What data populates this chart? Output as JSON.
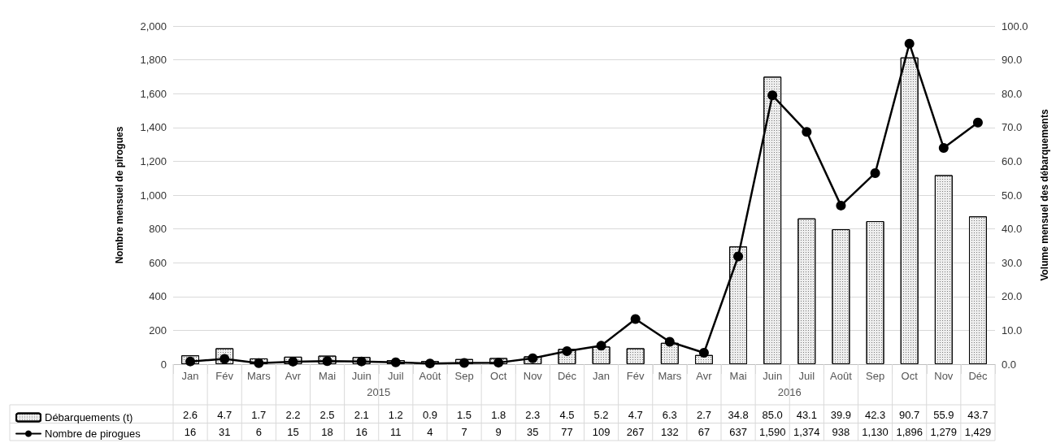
{
  "chart_data": {
    "type": "bar",
    "ylabel": "Nombre mensuel de pirogues",
    "y2label": "Volume mensuel des débarquements",
    "categories": [
      "Jan",
      "Fév",
      "Mars",
      "Avr",
      "Mai",
      "Juin",
      "Juil",
      "Août",
      "Sep",
      "Oct",
      "Nov",
      "Déc",
      "Jan",
      "Fév",
      "Mars",
      "Avr",
      "Mai",
      "Juin",
      "Juil",
      "Août",
      "Sep",
      "Oct",
      "Nov",
      "Déc"
    ],
    "annotations": [
      "2015",
      "2016"
    ],
    "series": [
      {
        "name": "Débarquements (t)",
        "axis": "y2",
        "color": "#eeeeee",
        "values": [
          2.6,
          4.7,
          1.7,
          2.2,
          2.5,
          2.1,
          1.2,
          0.9,
          1.5,
          1.8,
          2.3,
          4.5,
          5.2,
          4.7,
          6.3,
          2.7,
          34.8,
          85.0,
          43.1,
          39.9,
          42.3,
          90.7,
          55.9,
          43.7
        ],
        "value_labels": [
          "2.6",
          "4.7",
          "1.7",
          "2.2",
          "2.5",
          "2.1",
          "1.2",
          "0.9",
          "1.5",
          "1.8",
          "2.3",
          "4.5",
          "5.2",
          "4.7",
          "6.3",
          "2.7",
          "34.8",
          "85.0",
          "43.1",
          "39.9",
          "42.3",
          "90.7",
          "55.9",
          "43.7"
        ]
      },
      {
        "name": "Nombre de pirogues",
        "type": "line",
        "axis": "y",
        "color": "#000000",
        "marker": "circle",
        "line_style": "solid",
        "values": [
          16,
          31,
          6,
          15,
          18,
          16,
          11,
          4,
          7,
          9,
          35,
          77,
          109,
          267,
          132,
          67,
          637,
          1590,
          1374,
          938,
          1130,
          1896,
          1279,
          1429
        ],
        "value_labels": [
          "16",
          "31",
          "6",
          "15",
          "18",
          "16",
          "11",
          "4",
          "7",
          "9",
          "35",
          "77",
          "109",
          "267",
          "132",
          "67",
          "637",
          "1,590",
          "1,374",
          "938",
          "1,130",
          "1,896",
          "1,279",
          "1,429"
        ]
      }
    ],
    "ylim": [
      0,
      2000
    ],
    "yticks": [
      0,
      200,
      400,
      600,
      800,
      {
        "value": 1000,
        "label": "1,000"
      },
      {
        "value": 1200,
        "label": "1,200"
      },
      {
        "value": 1400,
        "label": "1,400"
      },
      {
        "value": 1600,
        "label": "1,600"
      },
      {
        "value": 1800,
        "label": "1,800"
      },
      {
        "value": 2000,
        "label": "2,000"
      }
    ],
    "y2lim": [
      0,
      100
    ],
    "y2ticks": [
      {
        "value": 0,
        "label": "0.0"
      },
      {
        "value": 10,
        "label": "10.0"
      },
      {
        "value": 20,
        "label": "20.0"
      },
      {
        "value": 30,
        "label": "30.0"
      },
      {
        "value": 40,
        "label": "40.0"
      },
      {
        "value": 50,
        "label": "50.0"
      },
      {
        "value": 60,
        "label": "60.0"
      },
      {
        "value": 70,
        "label": "70.0"
      },
      {
        "value": 80,
        "label": "80.0"
      },
      {
        "value": 90,
        "label": "90.0"
      },
      {
        "value": 100,
        "label": "100.0"
      }
    ],
    "grid": "y",
    "legend": "bottom left"
  }
}
